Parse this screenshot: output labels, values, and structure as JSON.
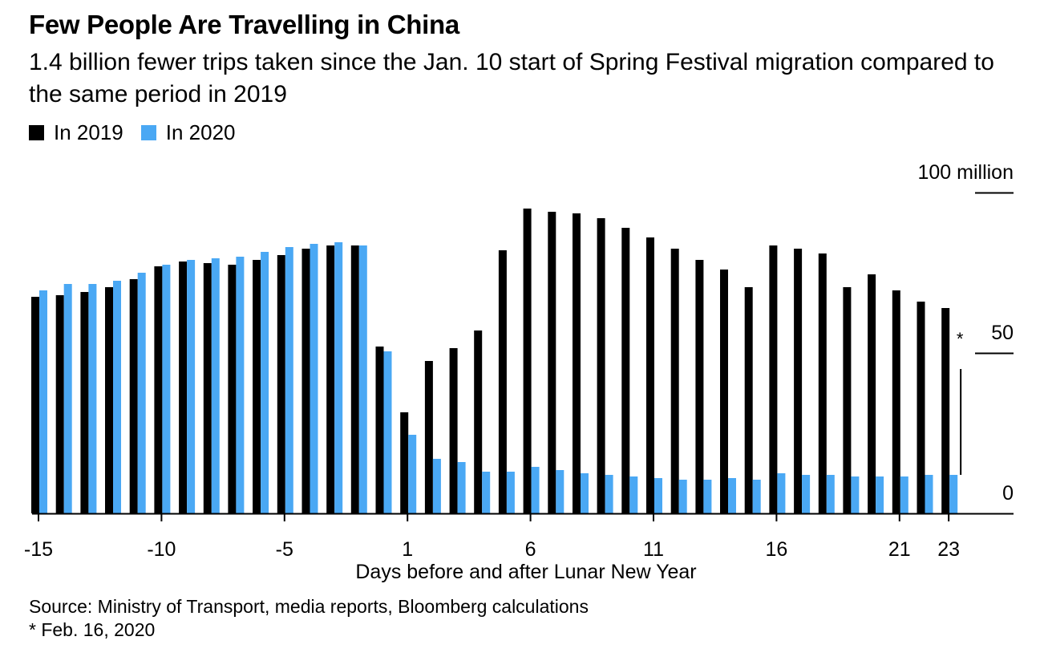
{
  "title": "Few People Are Travelling in China",
  "subtitle": "1.4 billion fewer trips taken since the Jan. 10 start of Spring Festival migration compared to the same period in 2019",
  "source": "Source: Ministry of Transport, media reports, Bloomberg calculations",
  "footnote": "* Feb. 16, 2020",
  "chart_data": {
    "type": "bar",
    "xlabel": "Days before and after Lunar New Year",
    "ylabel": "",
    "ylim": [
      0,
      100
    ],
    "y_unit_label": "100 million",
    "y_ticks": [
      0,
      50,
      100
    ],
    "x_ticks": [
      -15,
      -10,
      -5,
      1,
      6,
      11,
      16,
      21,
      23
    ],
    "annotation": "*",
    "legend_position": "top-left",
    "grid": false,
    "colors": {
      "2019": "#000000",
      "2020": "#4aa8f4"
    },
    "categories": [
      -15,
      -14,
      -13,
      -12,
      -11,
      -10,
      -9,
      -8,
      -7,
      -6,
      -5,
      -4,
      -3,
      -2,
      -1,
      1,
      2,
      3,
      4,
      5,
      6,
      7,
      8,
      9,
      10,
      11,
      12,
      13,
      14,
      15,
      16,
      17,
      18,
      19,
      20,
      21,
      22,
      23
    ],
    "series": [
      {
        "name": "In 2019",
        "values": [
          67.5,
          68,
          69,
          70.5,
          73,
          77,
          78.5,
          78,
          77.5,
          79,
          80.5,
          82.5,
          83.5,
          83.5,
          52,
          31.5,
          47.5,
          51.5,
          57,
          82,
          95,
          94,
          93.5,
          92,
          89,
          86,
          82.5,
          79,
          76,
          70.5,
          83.5,
          82.5,
          81,
          70.5,
          74.5,
          69.5,
          66,
          64
        ]
      },
      {
        "name": "In 2020",
        "values": [
          69.5,
          71.5,
          71.5,
          72.5,
          75,
          77.5,
          79,
          79.5,
          80,
          81.5,
          83,
          84,
          84.5,
          83.5,
          50.5,
          24.5,
          17,
          16,
          13,
          13,
          14.5,
          13.5,
          12.5,
          12,
          11.5,
          11,
          10.5,
          10.5,
          11,
          10.5,
          12.5,
          12,
          12,
          11.5,
          11.5,
          11.5,
          12,
          12
        ]
      }
    ]
  }
}
